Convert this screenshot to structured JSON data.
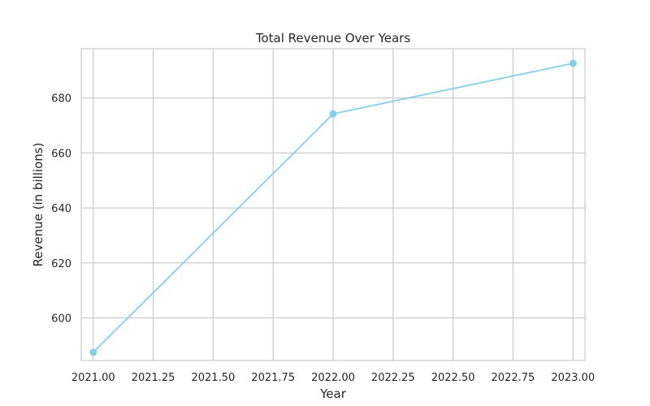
{
  "chart_data": {
    "type": "line",
    "title": "Total Revenue Over Years",
    "xlabel": "Year",
    "ylabel": "Revenue (in billions)",
    "x": [
      2021,
      2022,
      2023
    ],
    "series": [
      {
        "values": [
          587.5,
          674.2,
          692.6
        ]
      }
    ],
    "xlim": [
      2020.95,
      2023.05
    ],
    "ylim": [
      584.5,
      697.9
    ],
    "xticks": [
      2021.0,
      2021.25,
      2021.5,
      2021.75,
      2022.0,
      2022.25,
      2022.5,
      2022.75,
      2023.0
    ],
    "xtick_labels": [
      "2021.00",
      "2021.25",
      "2021.50",
      "2021.75",
      "2022.00",
      "2022.25",
      "2022.50",
      "2022.75",
      "2023.00"
    ],
    "yticks": [
      600,
      620,
      640,
      660,
      680
    ],
    "ytick_labels": [
      "600",
      "620",
      "640",
      "660",
      "680"
    ],
    "grid": true,
    "colors": {
      "line": "#87ceeb",
      "grid": "#cccccc",
      "axes_edge": "#cccccc",
      "text": "#262626"
    }
  }
}
